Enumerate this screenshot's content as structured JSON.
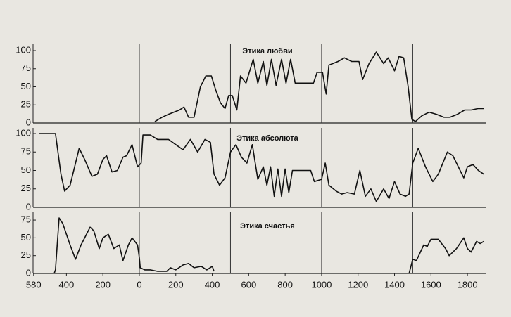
{
  "chart_data": [
    {
      "type": "line",
      "title": "Этика любви",
      "xlim": [
        -610,
        1900
      ],
      "ylim": [
        0,
        100
      ],
      "yticks": [
        0,
        25,
        50,
        75,
        100
      ],
      "vlines": [
        0,
        500,
        1000,
        1500
      ],
      "color": "#111111",
      "x": [
        85,
        125,
        160,
        220,
        245,
        270,
        300,
        335,
        365,
        395,
        420,
        445,
        470,
        490,
        510,
        535,
        555,
        585,
        625,
        650,
        680,
        700,
        725,
        750,
        780,
        805,
        830,
        855,
        905,
        955,
        975,
        1005,
        1025,
        1040,
        1090,
        1125,
        1165,
        1205,
        1225,
        1260,
        1300,
        1340,
        1365,
        1400,
        1425,
        1450,
        1475,
        1495,
        1515,
        1550,
        1590,
        1630,
        1670,
        1705,
        1745,
        1785,
        1820,
        1860,
        1890
      ],
      "values": [
        2,
        8,
        12,
        18,
        22,
        8,
        8,
        50,
        65,
        65,
        45,
        28,
        20,
        38,
        38,
        18,
        65,
        55,
        88,
        55,
        85,
        52,
        88,
        52,
        88,
        55,
        88,
        55,
        55,
        55,
        70,
        70,
        40,
        80,
        85,
        90,
        85,
        85,
        60,
        82,
        98,
        82,
        90,
        72,
        92,
        90,
        50,
        5,
        2,
        10,
        15,
        12,
        8,
        8,
        12,
        18,
        18,
        20,
        20
      ]
    },
    {
      "type": "line",
      "title": "Этика абсолюта",
      "xlim": [
        -610,
        1900
      ],
      "ylim": [
        0,
        100
      ],
      "yticks": [
        0,
        25,
        50,
        75,
        100
      ],
      "vlines": [
        0,
        500,
        1000,
        1500
      ],
      "color": "#111111",
      "x": [
        -550,
        -460,
        -430,
        -410,
        -380,
        -330,
        -300,
        -260,
        -230,
        -200,
        -180,
        -150,
        -120,
        -90,
        -70,
        -40,
        -10,
        10,
        20,
        60,
        100,
        160,
        200,
        240,
        280,
        320,
        360,
        390,
        410,
        440,
        470,
        500,
        530,
        560,
        590,
        620,
        650,
        680,
        700,
        720,
        740,
        760,
        780,
        800,
        820,
        840,
        900,
        940,
        960,
        1000,
        1020,
        1040,
        1080,
        1110,
        1140,
        1180,
        1210,
        1240,
        1270,
        1300,
        1340,
        1370,
        1400,
        1430,
        1460,
        1480,
        1500,
        1530,
        1570,
        1610,
        1640,
        1690,
        1720,
        1760,
        1780,
        1800,
        1830,
        1860,
        1890
      ],
      "values": [
        100,
        100,
        45,
        22,
        30,
        80,
        65,
        42,
        45,
        65,
        70,
        48,
        50,
        68,
        70,
        85,
        55,
        60,
        98,
        98,
        92,
        92,
        85,
        78,
        92,
        75,
        92,
        88,
        45,
        30,
        40,
        75,
        85,
        68,
        60,
        85,
        38,
        55,
        30,
        55,
        15,
        52,
        15,
        52,
        20,
        50,
        50,
        50,
        35,
        38,
        60,
        30,
        22,
        18,
        20,
        18,
        50,
        15,
        25,
        8,
        25,
        12,
        35,
        18,
        15,
        18,
        60,
        80,
        55,
        35,
        45,
        75,
        70,
        50,
        40,
        55,
        58,
        50,
        45
      ]
    },
    {
      "type": "line",
      "title": "Этика счастья",
      "xlim": [
        -610,
        1900
      ],
      "ylim": [
        0,
        80
      ],
      "yticks": [
        0,
        25,
        50,
        75
      ],
      "vlines": [
        0,
        500,
        1000,
        1500
      ],
      "color": "#111111",
      "xticks": [
        {
          "value": -580,
          "label": "580"
        },
        {
          "value": -400,
          "label": "400"
        },
        {
          "value": -200,
          "label": "200"
        },
        0,
        200,
        400,
        600,
        800,
        1000,
        1200,
        1400,
        1600,
        1800
      ],
      "x": [
        -467,
        -460,
        -440,
        -420,
        -380,
        -350,
        -320,
        -300,
        -270,
        -250,
        -220,
        -200,
        -170,
        -140,
        -110,
        -90,
        -60,
        -40,
        -10,
        0,
        5,
        30,
        60,
        100,
        150,
        170,
        200,
        240,
        270,
        300,
        340,
        370,
        400,
        410,
        1000,
        1480,
        1500,
        1520,
        1560,
        1580,
        1600,
        1640,
        1680,
        1700,
        1740,
        1780,
        1800,
        1820,
        1850,
        1870,
        1890
      ],
      "values": [
        0,
        5,
        78,
        70,
        40,
        20,
        40,
        50,
        65,
        60,
        35,
        50,
        55,
        35,
        40,
        18,
        40,
        50,
        40,
        22,
        8,
        5,
        5,
        3,
        3,
        8,
        5,
        12,
        14,
        8,
        10,
        5,
        10,
        3,
        null,
        0,
        20,
        18,
        40,
        38,
        48,
        48,
        35,
        25,
        35,
        50,
        35,
        30,
        45,
        42,
        45
      ]
    }
  ]
}
